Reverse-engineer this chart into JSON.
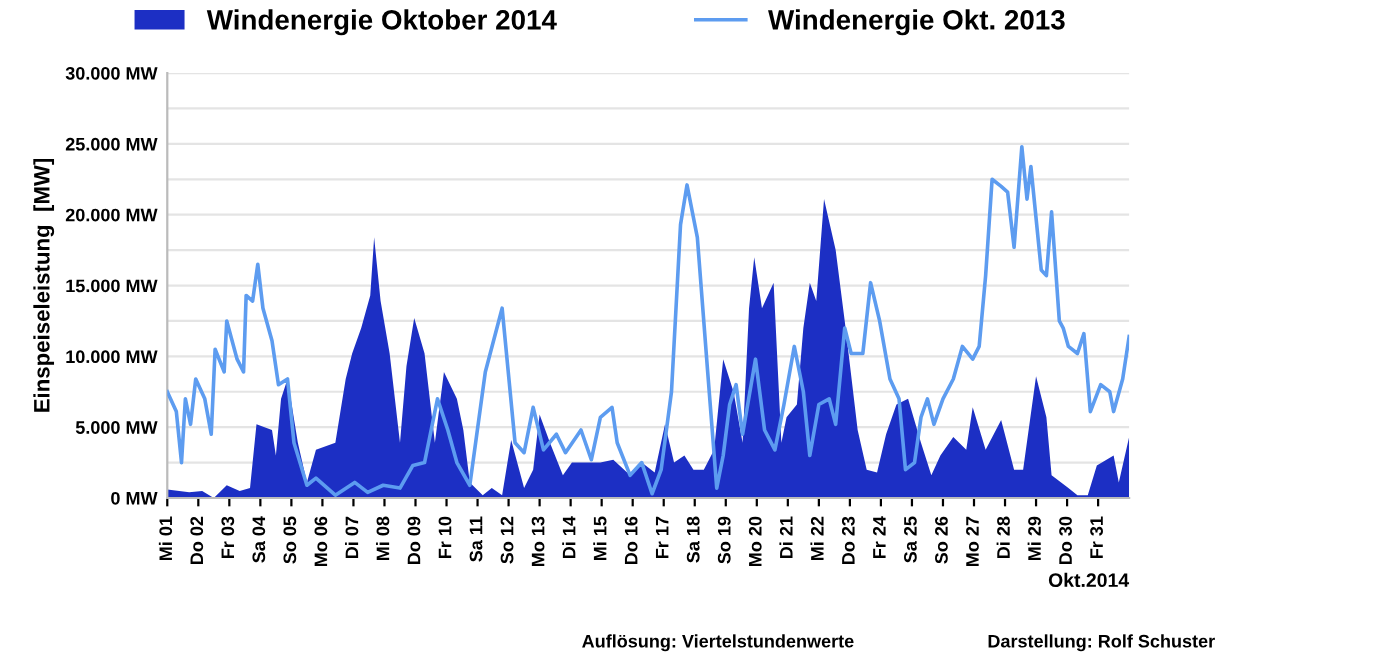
{
  "chart_data": {
    "type": "area",
    "ylabel": "Einspeiseleistung  [MW]",
    "xlabel": "Okt.2014",
    "annotations": [
      "Auflösung: Viertelstundenwerte",
      "Darstellung: Rolf Schuster"
    ],
    "legend": "top",
    "grid": "y",
    "xlim": [
      "2014-10-01",
      "2014-11-01"
    ],
    "xticks": [
      {
        "value": "2014-10-01",
        "label": "Mi 01"
      },
      {
        "value": "2014-10-02",
        "label": "Do 02"
      },
      {
        "value": "2014-10-03",
        "label": "Fr 03"
      },
      {
        "value": "2014-10-04",
        "label": "Sa 04"
      },
      {
        "value": "2014-10-05",
        "label": "So 05"
      },
      {
        "value": "2014-10-06",
        "label": "Mo 06"
      },
      {
        "value": "2014-10-07",
        "label": "Di 07"
      },
      {
        "value": "2014-10-08",
        "label": "Mi 08"
      },
      {
        "value": "2014-10-09",
        "label": "Do 09"
      },
      {
        "value": "2014-10-10",
        "label": "Fr 10"
      },
      {
        "value": "2014-10-11",
        "label": "Sa 11"
      },
      {
        "value": "2014-10-12",
        "label": "So 12"
      },
      {
        "value": "2014-10-13",
        "label": "Mo 13"
      },
      {
        "value": "2014-10-14",
        "label": "Di 14"
      },
      {
        "value": "2014-10-15",
        "label": "Mi 15"
      },
      {
        "value": "2014-10-16",
        "label": "Do 16"
      },
      {
        "value": "2014-10-17",
        "label": "Fr 17"
      },
      {
        "value": "2014-10-18",
        "label": "Sa 18"
      },
      {
        "value": "2014-10-19",
        "label": "So 19"
      },
      {
        "value": "2014-10-20",
        "label": "Mo 20"
      },
      {
        "value": "2014-10-21",
        "label": "Di 21"
      },
      {
        "value": "2014-10-22",
        "label": "Mi 22"
      },
      {
        "value": "2014-10-23",
        "label": "Do 23"
      },
      {
        "value": "2014-10-24",
        "label": "Fr 24"
      },
      {
        "value": "2014-10-25",
        "label": "Sa 25"
      },
      {
        "value": "2014-10-26",
        "label": "So 26"
      },
      {
        "value": "2014-10-27",
        "label": "Mo 27"
      },
      {
        "value": "2014-10-28",
        "label": "Di 28"
      },
      {
        "value": "2014-10-29",
        "label": "Mi 29"
      },
      {
        "value": "2014-10-30",
        "label": "Do 30"
      },
      {
        "value": "2014-10-31",
        "label": "Fr 31"
      }
    ],
    "ylim": [
      0,
      30000
    ],
    "yticks": [
      {
        "value": 0,
        "label": "0 MW"
      },
      {
        "value": 2500,
        "label": null
      },
      {
        "value": 5000,
        "label": "5.000 MW"
      },
      {
        "value": 7500,
        "label": null
      },
      {
        "value": 10000,
        "label": "10.000 MW"
      },
      {
        "value": 12500,
        "label": null
      },
      {
        "value": 15000,
        "label": "15.000 MW"
      },
      {
        "value": 17500,
        "label": null
      },
      {
        "value": 20000,
        "label": "20.000 MW"
      },
      {
        "value": 22500,
        "label": null
      },
      {
        "value": 25000,
        "label": "25.000 MW"
      },
      {
        "value": 27500,
        "label": null
      },
      {
        "value": 30000,
        "label": "30.000 MW"
      }
    ],
    "series": [
      {
        "name": "Windenergie Oktober 2014",
        "color": "#1c2fc4",
        "x": [
          "2014-10-01T00:00",
          "2014-10-01T17:00",
          "2014-10-02T03:00",
          "2014-10-02T12:00",
          "2014-10-02T22:00",
          "2014-10-03T08:00",
          "2014-10-03T16:00",
          "2014-10-03T21:00",
          "2014-10-04T09:00",
          "2014-10-04T12:00",
          "2014-10-04T16:00",
          "2014-10-04T21:00",
          "2014-10-05T05:00",
          "2014-10-05T12:00",
          "2014-10-05T19:00",
          "2014-10-06T10:00",
          "2014-10-06T18:00",
          "2014-10-06T23:00",
          "2014-10-07T06:00",
          "2014-10-07T13:00",
          "2014-10-07T16:00",
          "2014-10-07T21:00",
          "2014-10-08T04:00",
          "2014-10-08T12:00",
          "2014-10-08T17:00",
          "2014-10-08T23:00",
          "2014-10-09T07:00",
          "2014-10-09T15:00",
          "2014-10-09T22:00",
          "2014-10-10T08:00",
          "2014-10-10T13:00",
          "2014-10-10T18:00",
          "2014-10-11T04:00",
          "2014-10-11T11:00",
          "2014-10-11T19:00",
          "2014-10-12T02:00",
          "2014-10-12T12:00",
          "2014-10-12T19:00",
          "2014-10-13T00:00",
          "2014-10-13T08:00",
          "2014-10-13T18:00",
          "2014-10-14T01:00",
          "2014-10-14T11:00",
          "2014-10-14T23:00",
          "2014-10-15T09:00",
          "2014-10-15T22:00",
          "2014-10-16T07:00",
          "2014-10-16T17:00",
          "2014-10-17T01:00",
          "2014-10-17T08:00",
          "2014-10-17T16:00",
          "2014-10-17T23:00",
          "2014-10-18T07:00",
          "2014-10-18T15:00",
          "2014-10-18T22:00",
          "2014-10-19T06:00",
          "2014-10-19T13:00",
          "2014-10-19T18:00",
          "2014-10-19T22:00",
          "2014-10-20T04:00",
          "2014-10-20T13:00",
          "2014-10-20T19:00",
          "2014-10-20T23:00",
          "2014-10-21T07:00",
          "2014-10-21T12:00",
          "2014-10-21T17:00",
          "2014-10-21T22:00",
          "2014-10-22T04:00",
          "2014-10-22T13:00",
          "2014-10-22T20:00",
          "2014-10-23T06:00",
          "2014-10-23T13:00",
          "2014-10-23T21:00",
          "2014-10-24T04:00",
          "2014-10-24T12:00",
          "2014-10-24T21:00",
          "2014-10-25T07:00",
          "2014-10-25T15:00",
          "2014-10-25T22:00",
          "2014-10-26T08:00",
          "2014-10-26T18:00",
          "2014-10-26T23:00",
          "2014-10-27T09:00",
          "2014-10-27T21:00",
          "2014-10-28T07:00",
          "2014-10-28T14:00",
          "2014-10-29T00:00",
          "2014-10-29T08:00",
          "2014-10-29T12:00",
          "2014-10-30T01:00",
          "2014-10-30T08:00",
          "2014-10-30T16:00",
          "2014-10-30T23:00",
          "2014-10-31T12:00",
          "2014-10-31T16:00",
          "2014-11-01T00:00"
        ],
        "values": [
          600,
          400,
          500,
          0,
          900,
          500,
          700,
          5200,
          4800,
          3000,
          7000,
          8400,
          3900,
          1100,
          3400,
          3900,
          8400,
          10200,
          12000,
          14300,
          18400,
          13900,
          10200,
          3900,
          9300,
          12700,
          10200,
          3900,
          8900,
          7000,
          4800,
          1100,
          200,
          700,
          200,
          4100,
          700,
          2000,
          5900,
          3900,
          1600,
          2500,
          2500,
          2500,
          2700,
          1600,
          2500,
          1800,
          5200,
          2500,
          3000,
          2000,
          2000,
          3400,
          9800,
          7500,
          3900,
          13400,
          17000,
          13400,
          15200,
          3900,
          5700,
          6600,
          12000,
          15200,
          13900,
          21100,
          17500,
          12500,
          4800,
          2000,
          1800,
          4500,
          6600,
          7000,
          3900,
          1600,
          3000,
          4300,
          3400,
          6400,
          3400,
          5500,
          2000,
          2000,
          8600,
          5700,
          1600,
          700,
          200,
          200,
          2300,
          3000,
          1100,
          4300
        ]
      },
      {
        "name": "Windenergie Okt. 2013",
        "type": "line",
        "color": "#5d9cf0",
        "x": [
          "2014-10-01T00:00",
          "2014-10-01T07:00",
          "2014-10-01T11:00",
          "2014-10-01T14:00",
          "2014-10-01T18:00",
          "2014-10-01T22:00",
          "2014-10-02T05:00",
          "2014-10-02T10:00",
          "2014-10-02T13:00",
          "2014-10-02T20:00",
          "2014-10-02T22:00",
          "2014-10-03T06:00",
          "2014-10-03T11:00",
          "2014-10-03T13:00",
          "2014-10-03T18:00",
          "2014-10-03T22:00",
          "2014-10-04T02:00",
          "2014-10-04T09:00",
          "2014-10-04T14:00",
          "2014-10-04T21:00",
          "2014-10-05T02:00",
          "2014-10-05T12:00",
          "2014-10-05T19:00",
          "2014-10-06T10:00",
          "2014-10-07T01:00",
          "2014-10-07T11:00",
          "2014-10-07T23:00",
          "2014-10-08T12:00",
          "2014-10-08T22:00",
          "2014-10-09T07:00",
          "2014-10-09T17:00",
          "2014-10-10T01:00",
          "2014-10-10T08:00",
          "2014-10-10T18:00",
          "2014-10-11T06:00",
          "2014-10-11T19:00",
          "2014-10-12T05:00",
          "2014-10-12T12:00",
          "2014-10-12T19:00",
          "2014-10-13T03:00",
          "2014-10-13T13:00",
          "2014-10-13T20:00",
          "2014-10-14T08:00",
          "2014-10-14T16:00",
          "2014-10-14T23:00",
          "2014-10-15T08:00",
          "2014-10-15T12:00",
          "2014-10-15T22:00",
          "2014-10-16T07:00",
          "2014-10-16T15:00",
          "2014-10-16T22:00",
          "2014-10-17T06:00",
          "2014-10-17T13:00",
          "2014-10-17T18:00",
          "2014-10-18T02:00",
          "2014-10-18T10:00",
          "2014-10-18T17:00",
          "2014-10-18T22:00",
          "2014-10-19T03:00",
          "2014-10-19T08:00",
          "2014-10-19T13:00",
          "2014-10-19T23:00",
          "2014-10-20T06:00",
          "2014-10-20T14:00",
          "2014-10-20T21:00",
          "2014-10-21T05:00",
          "2014-10-21T12:00",
          "2014-10-21T17:00",
          "2014-10-22T00:00",
          "2014-10-22T08:00",
          "2014-10-22T13:00",
          "2014-10-22T20:00",
          "2014-10-23T01:00",
          "2014-10-23T10:00",
          "2014-10-23T16:00",
          "2014-10-23T23:00",
          "2014-10-24T07:00",
          "2014-10-24T14:00",
          "2014-10-24T19:00",
          "2014-10-25T02:00",
          "2014-10-25T07:00",
          "2014-10-25T12:00",
          "2014-10-25T17:00",
          "2014-10-26T00:00",
          "2014-10-26T08:00",
          "2014-10-26T15:00",
          "2014-10-26T23:00",
          "2014-10-27T04:00",
          "2014-10-27T09:00",
          "2014-10-27T14:00",
          "2014-10-27T21:00",
          "2014-10-28T02:00",
          "2014-10-28T07:00",
          "2014-10-28T13:00",
          "2014-10-28T17:00",
          "2014-10-28T20:00",
          "2014-10-29T04:00",
          "2014-10-29T08:00",
          "2014-10-29T12:00",
          "2014-10-29T18:00",
          "2014-10-29T21:00",
          "2014-10-30T01:00",
          "2014-10-30T08:00",
          "2014-10-30T13:00",
          "2014-10-30T18:00",
          "2014-10-31T02:00",
          "2014-10-31T09:00",
          "2014-10-31T12:00",
          "2014-10-31T19:00",
          "2014-11-01T00:00"
        ],
        "values": [
          7500,
          6100,
          2500,
          7000,
          5200,
          8400,
          7000,
          4500,
          10500,
          8900,
          12500,
          9800,
          8900,
          14300,
          13900,
          16500,
          13400,
          11100,
          8000,
          8400,
          3900,
          900,
          1400,
          200,
          1100,
          400,
          900,
          700,
          2300,
          2500,
          7000,
          4800,
          2500,
          900,
          8900,
          13400,
          3900,
          3200,
          6400,
          3400,
          4500,
          3200,
          4800,
          2700,
          5700,
          6400,
          3900,
          1600,
          2500,
          300,
          2000,
          7500,
          19300,
          22100,
          18400,
          8900,
          700,
          3000,
          6600,
          8000,
          4500,
          9800,
          4800,
          3400,
          6600,
          10700,
          7500,
          3000,
          6600,
          7000,
          5200,
          12000,
          10200,
          10200,
          15200,
          12500,
          8400,
          7000,
          2000,
          2500,
          5700,
          7000,
          5200,
          7000,
          8400,
          10700,
          9800,
          10700,
          15700,
          22500,
          22000,
          21600,
          17700,
          24800,
          21100,
          23400,
          16100,
          15700,
          20200,
          12500,
          12000,
          10700,
          10200,
          11600,
          6100,
          8000,
          7500,
          6100,
          8400,
          11400
        ]
      }
    ]
  }
}
